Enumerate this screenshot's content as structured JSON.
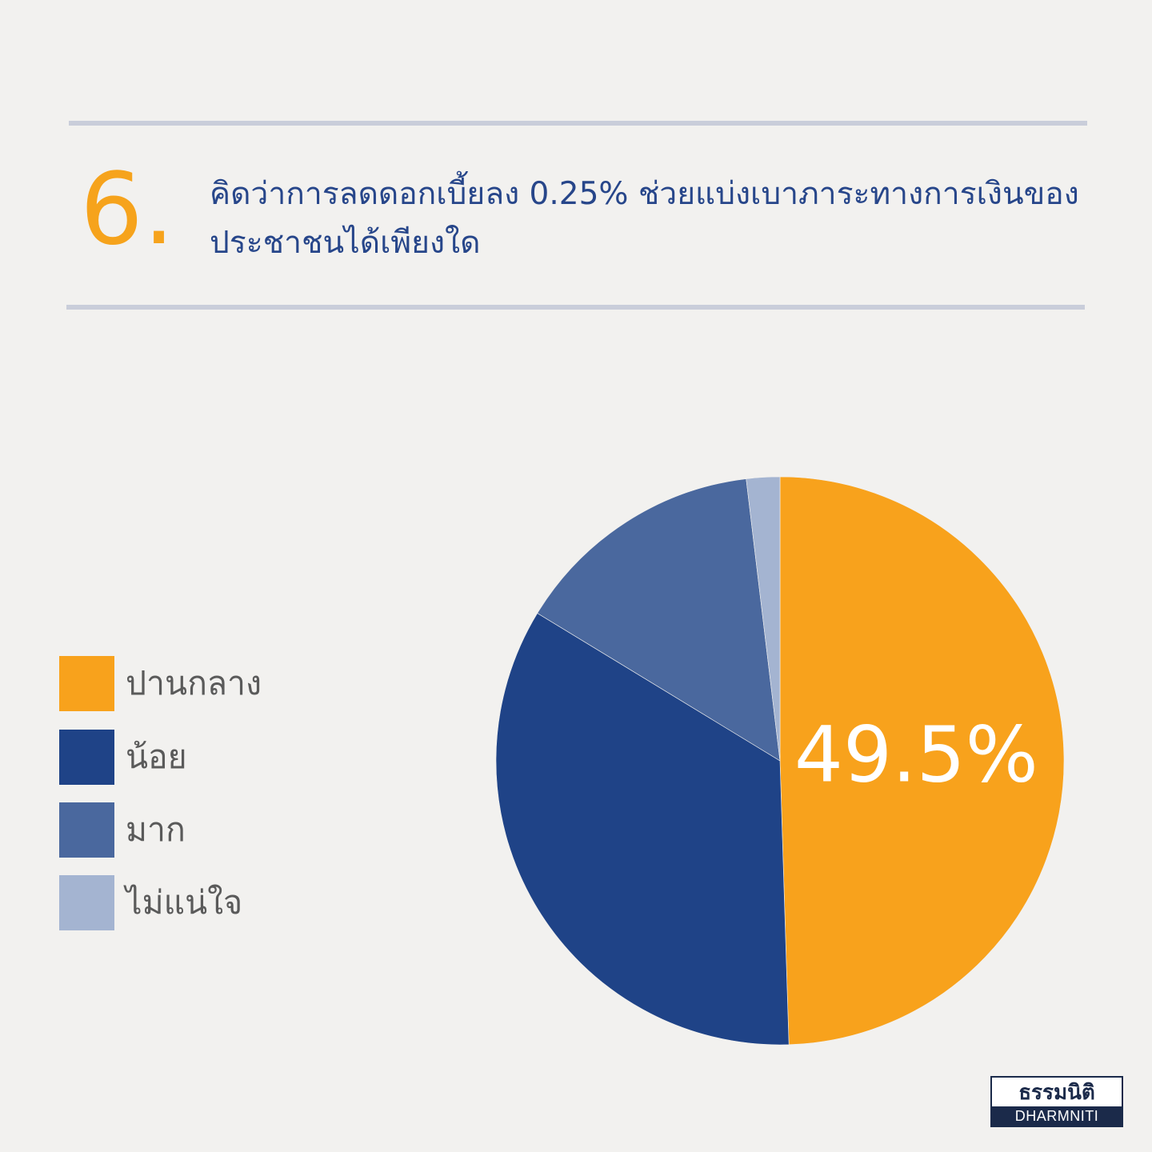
{
  "question": {
    "number": "6.",
    "title_lines": [
      "คิดว่าการลดดอกเบี้ยลง 0.25% ช่วยแบ่งเบาภาระทางการเงินของ",
      "ประชาชนได้เพียงใด"
    ]
  },
  "chart_data": {
    "type": "pie",
    "categories": [
      "ปานกลาง",
      "น้อย",
      "มาก",
      "ไม่แน่ใจ"
    ],
    "values": [
      49.5,
      34.2,
      14.4,
      1.9
    ],
    "colors": [
      "#f8a21c",
      "#1f4387",
      "#4a689e",
      "#a4b4d1"
    ],
    "data_labels": [
      "49.5%",
      "",
      "",
      ""
    ],
    "start_angle_deg": 0,
    "direction": "clockwise",
    "legend_position": "left"
  },
  "logo": {
    "thai": "ธรรมนิติ",
    "english": "DHARMNITI"
  }
}
